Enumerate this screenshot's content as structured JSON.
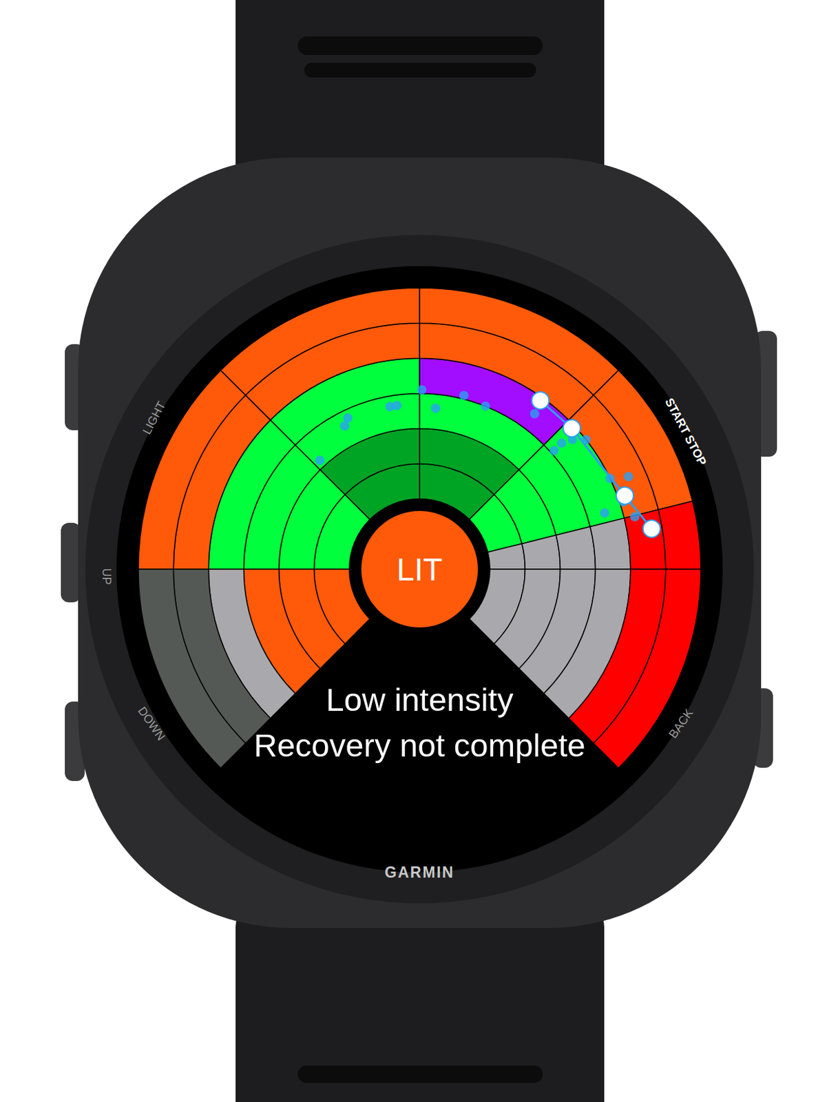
{
  "chart_data": {
    "type": "polar_zones",
    "center_label": "LIT",
    "status_lines": [
      "Low intensity",
      "Recovery not complete"
    ],
    "rlim": [
      0,
      8
    ],
    "thetalim": [
      0,
      360
    ],
    "tick_labels": false,
    "zones": [
      {
        "angles": [
          135,
          180
        ],
        "radii": [
          2,
          6
        ],
        "color": "#00ff3c"
      },
      {
        "angles": [
          135,
          180
        ],
        "radii": [
          6,
          8
        ],
        "color": "#ff5a0a"
      },
      {
        "angles": [
          90,
          135
        ],
        "radii": [
          2,
          4
        ],
        "color": "#00a424"
      },
      {
        "angles": [
          90,
          135
        ],
        "radii": [
          4,
          6
        ],
        "color": "#00ff3c"
      },
      {
        "angles": [
          90,
          135
        ],
        "radii": [
          6,
          8
        ],
        "color": "#ff5a0a"
      },
      {
        "angles": [
          45,
          90
        ],
        "radii": [
          2,
          4
        ],
        "color": "#00a424"
      },
      {
        "angles": [
          45,
          90
        ],
        "radii": [
          4,
          5
        ],
        "color": "#00ff3c"
      },
      {
        "angles": [
          45,
          90
        ],
        "radii": [
          5,
          6
        ],
        "color": "#a20cff"
      },
      {
        "angles": [
          45,
          90
        ],
        "radii": [
          6,
          8
        ],
        "color": "#ff5a0a"
      },
      {
        "angles": [
          14,
          45
        ],
        "radii": [
          2,
          6
        ],
        "color": "#00ff3c"
      },
      {
        "angles": [
          14,
          45
        ],
        "radii": [
          6,
          8
        ],
        "color": "#ff5a0a"
      },
      {
        "angles": [
          0,
          14
        ],
        "radii": [
          2,
          6
        ],
        "color": "#a9a8ac"
      },
      {
        "angles": [
          0,
          14
        ],
        "radii": [
          6,
          8
        ],
        "color": "#ff0000"
      },
      {
        "angles": [
          315,
          360
        ],
        "radii": [
          2,
          6
        ],
        "color": "#a9a8ac"
      },
      {
        "angles": [
          315,
          360
        ],
        "radii": [
          6,
          8
        ],
        "color": "#ff0000"
      },
      {
        "angles": [
          180,
          225
        ],
        "radii": [
          2,
          5
        ],
        "color": "#ff5a0a"
      },
      {
        "angles": [
          180,
          225
        ],
        "radii": [
          5,
          6
        ],
        "color": "#a9a8ac"
      },
      {
        "angles": [
          180,
          225
        ],
        "radii": [
          6,
          8
        ],
        "color": "#545955"
      }
    ],
    "series": [
      {
        "type": "scatter",
        "color": "#2aa0f5",
        "marker": "circle",
        "theta": [
          132.5,
          117.6,
          115.4,
          100.3,
          97.9,
          89.3,
          84.3,
          75.7,
          68,
          53.5,
          41.6,
          40.3,
          37.9,
          41.4,
          25.5,
          23.9,
          16.9,
          18.3,
          13.7,
          9.4
        ],
        "r": [
          4.2,
          4.6,
          4.76,
          4.7,
          4.7,
          5.1,
          4.6,
          5.1,
          5.0,
          5.5,
          5.4,
          5.7,
          6.0,
          5.1,
          6.0,
          6.5,
          5.5,
          6.1,
          6.3,
          6.7
        ]
      },
      {
        "type": "line",
        "color": "#2aa0f5",
        "marker": "circle_open",
        "theta": [
          54.4,
          42.8,
          19.7,
          9.9
        ],
        "r": [
          5.9,
          5.9,
          6.2,
          6.7
        ]
      }
    ]
  },
  "watch": {
    "brand": "GARMIN",
    "buttons": {
      "left": [
        "LIGHT",
        "UP",
        "DOWN"
      ],
      "right": [
        "START STOP",
        "BACK"
      ]
    }
  }
}
